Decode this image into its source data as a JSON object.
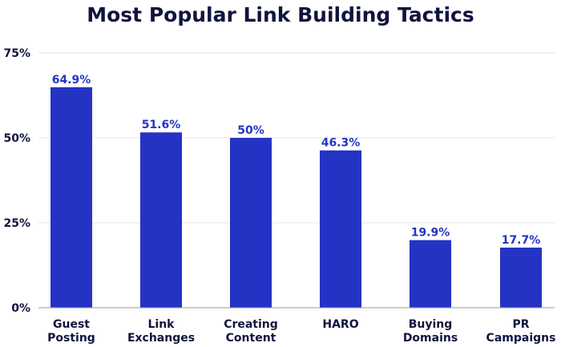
{
  "chart_data": {
    "type": "bar",
    "title": "Most Popular Link Building Tactics",
    "categories": [
      [
        "Guest",
        "Posting"
      ],
      [
        "Link",
        "Exchanges"
      ],
      [
        "Creating",
        "Content"
      ],
      [
        "HARO"
      ],
      [
        "Buying",
        "Domains"
      ],
      [
        "PR",
        "Campaigns"
      ]
    ],
    "values": [
      64.9,
      51.6,
      50,
      46.3,
      19.9,
      17.7
    ],
    "value_labels": [
      "64.9%",
      "51.6%",
      "50%",
      "46.3%",
      "19.9%",
      "17.7%"
    ],
    "ylim": [
      0,
      75
    ],
    "yticks": [
      0,
      25,
      50,
      75
    ],
    "ytick_labels": [
      "0%",
      "25%",
      "50%",
      "75%"
    ],
    "grid": true,
    "colors": {
      "bar": "#2433c4",
      "value_label": "#2433c4",
      "text": "#10143d",
      "grid": "#e4e4e4",
      "axis": "#9a9a9a"
    }
  }
}
